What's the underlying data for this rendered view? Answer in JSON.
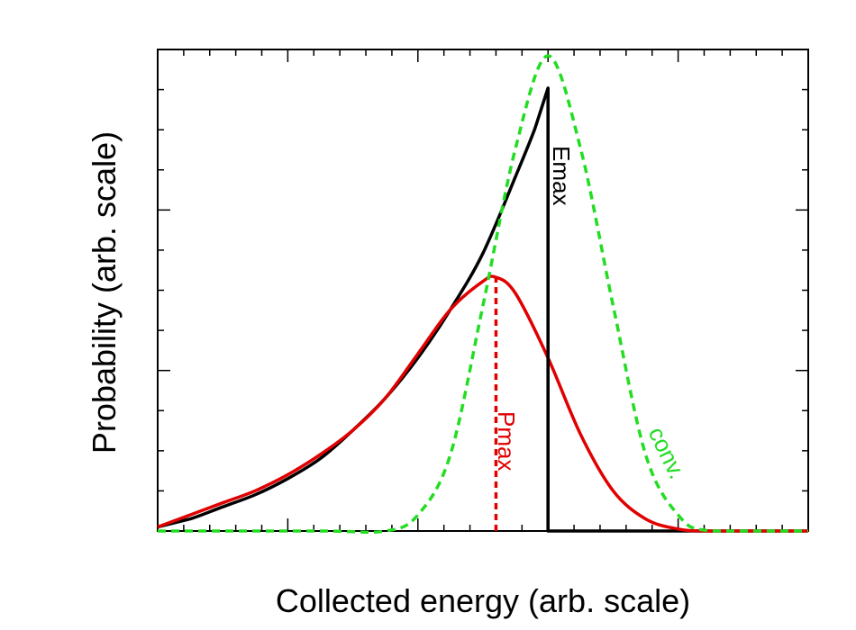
{
  "chart_data": {
    "type": "line",
    "xlabel": "Collected energy (arb. scale)",
    "ylabel": "Probability (arb. scale)",
    "xlim": [
      0,
      10
    ],
    "ylim": [
      0,
      1.18
    ],
    "x_tick_labels_shown": false,
    "y_tick_labels_shown": false,
    "grid": false,
    "series": [
      {
        "color": "#000000",
        "style": "solid",
        "x": [
          0,
          0.5,
          1,
          1.5,
          2,
          2.5,
          3,
          3.5,
          4,
          4.5,
          5,
          5.5,
          5.8,
          6.0,
          6.0,
          7.0,
          8.0,
          10.0
        ],
        "y": [
          0.01,
          0.03,
          0.06,
          0.09,
          0.13,
          0.18,
          0.25,
          0.33,
          0.43,
          0.55,
          0.69,
          0.88,
          1.0,
          1.1,
          0.0,
          0.0,
          0.0,
          0.0
        ]
      },
      {
        "color": "#e00000",
        "style": "solid",
        "x": [
          0,
          0.5,
          1,
          1.5,
          2,
          2.5,
          3,
          3.5,
          4,
          4.5,
          5,
          5.2,
          5.5,
          6.0,
          6.5,
          7.0,
          7.5,
          8.0,
          8.5,
          10.0
        ],
        "y": [
          0.01,
          0.04,
          0.07,
          0.1,
          0.14,
          0.19,
          0.25,
          0.33,
          0.44,
          0.55,
          0.62,
          0.63,
          0.59,
          0.43,
          0.24,
          0.1,
          0.03,
          0.005,
          0.0,
          0.0
        ]
      },
      {
        "color": "#22dd22",
        "style": "dashed",
        "x": [
          0,
          2.5,
          3.5,
          4.0,
          4.5,
          5.0,
          5.5,
          6.0,
          6.5,
          7.0,
          7.5,
          8.0,
          8.5,
          10.0
        ],
        "y": [
          0.0,
          0.0,
          0.0,
          0.04,
          0.19,
          0.56,
          0.95,
          1.18,
          0.95,
          0.56,
          0.19,
          0.04,
          0.0,
          0.0
        ]
      }
    ],
    "markers": [
      {
        "label": "Emax",
        "x": 6.0,
        "y_from": 0,
        "y_to": 1.1,
        "color": "#000000",
        "style": "solid"
      },
      {
        "label": "Pmax",
        "x": 5.2,
        "y_from": 0,
        "y_to": 0.63,
        "color": "#e00000",
        "style": "dashed"
      }
    ],
    "annotations": [
      {
        "text": "Emax",
        "color": "#000000"
      },
      {
        "text": "Pmax",
        "color": "#e00000"
      },
      {
        "text": "conv.",
        "color": "#22dd22"
      }
    ]
  }
}
